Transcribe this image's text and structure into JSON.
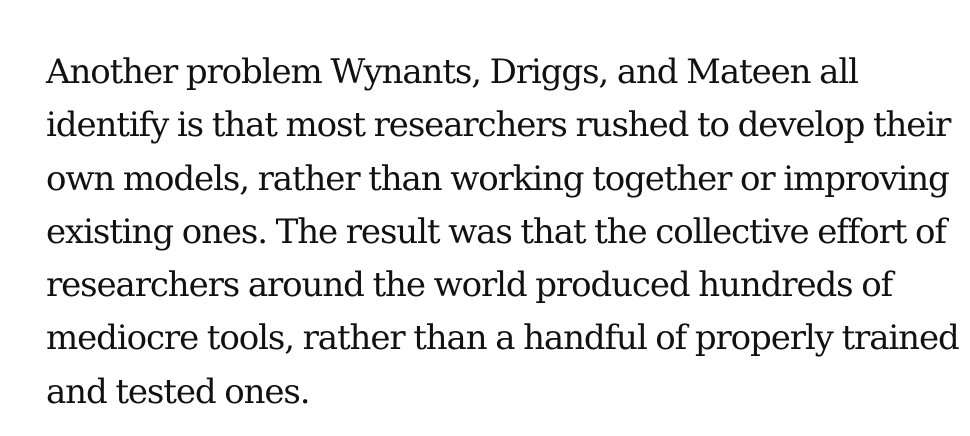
{
  "paragraph": {
    "lines": [
      "Another problem Wynants, Driggs, and Mateen all",
      "identify is that most researchers rushed to develop their",
      "own models, rather than working together or improving",
      "existing ones. The result was that the collective effort of",
      "researchers around the world produced hundreds of",
      "mediocre tools, rather than a handful of properly trained",
      "and tested ones."
    ]
  }
}
